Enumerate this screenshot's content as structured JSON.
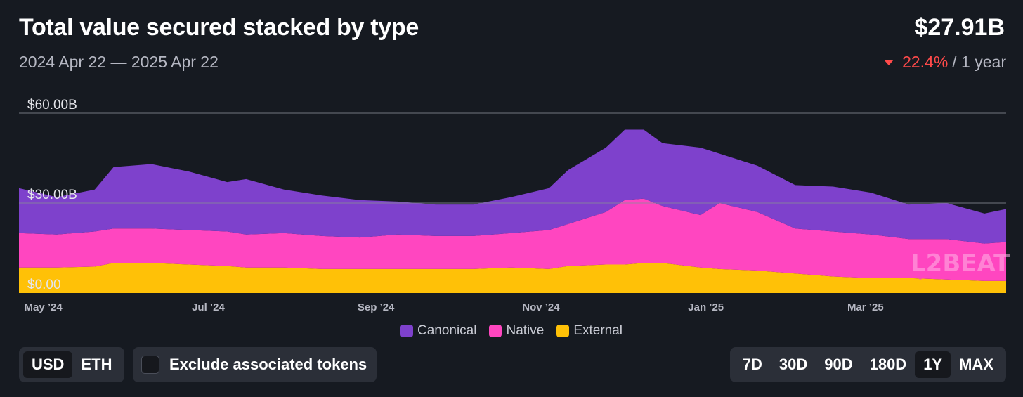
{
  "header": {
    "title": "Total value secured stacked by type",
    "date_range": "2024 Apr 22 — 2025 Apr 22",
    "total_value": "$27.91B",
    "change_pct": "22.4%",
    "change_period": "/ 1 year",
    "change_direction": "down"
  },
  "colors": {
    "canonical": "#7e41cc",
    "native": "#ff46c0",
    "external": "#ffc107",
    "grid": "#8a8d97",
    "down": "#ff4a4a"
  },
  "watermark": {
    "text": "L2BEAT"
  },
  "chart_data": {
    "type": "area",
    "stacked": true,
    "y_tick_labels": [
      "$0.00",
      "$30.00B",
      "$60.00B"
    ],
    "y_ticks": [
      0,
      30,
      60
    ],
    "ylim": [
      0,
      60
    ],
    "x_tick_labels": [
      "May ’24",
      "Jul ’24",
      "Sep ’24",
      "Nov ’24",
      "Jan ’25",
      "Mar ’25"
    ],
    "x_tick_dates": [
      "2024-05-01",
      "2024-07-01",
      "2024-09-01",
      "2024-11-01",
      "2025-01-01",
      "2025-03-01"
    ],
    "xlim": [
      "2024-04-22",
      "2025-04-22"
    ],
    "x": [
      "2024-04-22",
      "2024-05-06",
      "2024-05-20",
      "2024-05-27",
      "2024-06-10",
      "2024-06-24",
      "2024-07-08",
      "2024-07-15",
      "2024-07-29",
      "2024-08-12",
      "2024-08-26",
      "2024-09-09",
      "2024-09-23",
      "2024-10-07",
      "2024-10-21",
      "2024-11-04",
      "2024-11-11",
      "2024-11-25",
      "2024-12-02",
      "2024-12-09",
      "2024-12-16",
      "2024-12-30",
      "2025-01-06",
      "2025-01-20",
      "2025-02-03",
      "2025-02-17",
      "2025-03-03",
      "2025-03-17",
      "2025-03-31",
      "2025-04-14",
      "2025-04-22"
    ],
    "series": [
      {
        "name": "External",
        "values": [
          8.5,
          8.5,
          8.8,
          10.0,
          10.0,
          9.5,
          9.0,
          8.5,
          8.5,
          8.0,
          8.0,
          8.0,
          8.0,
          8.0,
          8.5,
          8.0,
          9.0,
          9.5,
          9.5,
          10.0,
          10.0,
          8.5,
          8.0,
          7.5,
          6.5,
          5.5,
          5.0,
          5.0,
          4.5,
          4.0,
          4.0
        ]
      },
      {
        "name": "Native",
        "values": [
          11.5,
          11.0,
          11.7,
          11.5,
          11.5,
          11.5,
          11.5,
          11.0,
          11.5,
          11.0,
          10.5,
          11.5,
          11.0,
          11.0,
          11.5,
          13.0,
          14.0,
          17.5,
          21.5,
          21.5,
          19.0,
          17.5,
          22.0,
          19.5,
          15.0,
          15.0,
          14.5,
          13.0,
          13.5,
          12.5,
          13.0
        ]
      },
      {
        "name": "Canonical",
        "values": [
          15.0,
          12.5,
          14.0,
          20.5,
          21.5,
          19.5,
          16.5,
          18.5,
          14.5,
          13.5,
          12.5,
          11.0,
          10.5,
          10.5,
          12.0,
          14.0,
          18.0,
          21.5,
          23.5,
          23.0,
          21.0,
          22.5,
          16.5,
          15.5,
          14.5,
          15.0,
          14.0,
          11.5,
          12.0,
          10.0,
          11.0
        ]
      }
    ]
  },
  "legend": [
    {
      "label": "Canonical",
      "color": "#7e41cc"
    },
    {
      "label": "Native",
      "color": "#ff46c0"
    },
    {
      "label": "External",
      "color": "#ffc107"
    }
  ],
  "controls": {
    "currency": {
      "options": [
        "USD",
        "ETH"
      ],
      "selected": "USD"
    },
    "exclude_label": "Exclude associated tokens",
    "exclude_checked": false,
    "ranges": {
      "options": [
        "7D",
        "30D",
        "90D",
        "180D",
        "1Y",
        "MAX"
      ],
      "selected": "1Y"
    }
  }
}
